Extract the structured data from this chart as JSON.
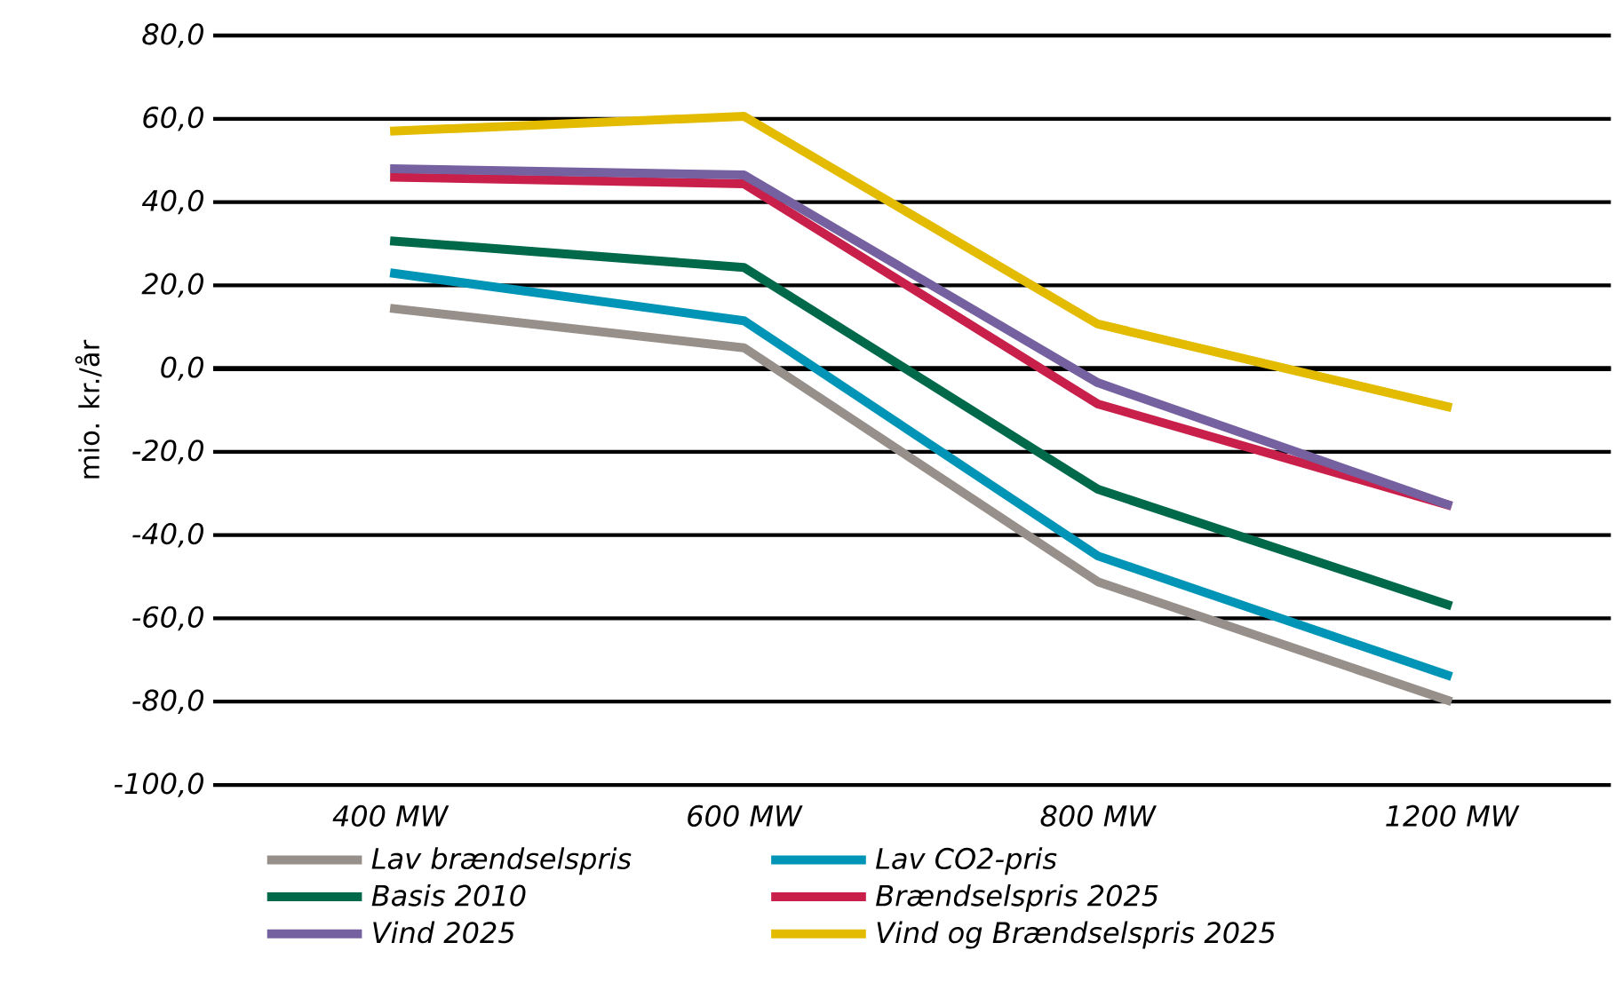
{
  "chart_data": {
    "type": "line",
    "ylabel": "mio. kr./år",
    "categories": [
      "400 MW",
      "600 MW",
      "800 MW",
      "1200 MW"
    ],
    "series": [
      {
        "name": "Lav brændselspris",
        "color": "#968f8a",
        "values": [
          14.5,
          5.0,
          -51.2,
          -80.0
        ]
      },
      {
        "name": "Lav CO2-pris",
        "color": "#0095b6",
        "values": [
          23.0,
          11.5,
          -45.0,
          -74.0
        ]
      },
      {
        "name": "Basis 2010",
        "color": "#00694a",
        "values": [
          30.7,
          24.3,
          -29.0,
          -57.0
        ]
      },
      {
        "name": "Brændselspris 2025",
        "color": "#c8204a",
        "values": [
          46.0,
          44.4,
          -8.5,
          -33.0
        ]
      },
      {
        "name": "Vind 2025",
        "color": "#7560a0",
        "values": [
          48.0,
          46.5,
          -3.4,
          -33.0
        ]
      },
      {
        "name": "Vind og Brændselspris 2025",
        "color": "#e3bb00",
        "values": [
          57.0,
          60.6,
          10.7,
          -9.4
        ]
      }
    ],
    "ylim": [
      -100,
      80
    ],
    "yticks": [
      {
        "value": -100,
        "label": "-100,0"
      },
      {
        "value": -80,
        "label": "-80,0"
      },
      {
        "value": -60,
        "label": "-60,0"
      },
      {
        "value": -40,
        "label": "-40,0"
      },
      {
        "value": -20,
        "label": "-20,0"
      },
      {
        "value": 0,
        "label": "0,0"
      },
      {
        "value": 20,
        "label": "20,0"
      },
      {
        "value": 40,
        "label": "40,0"
      },
      {
        "value": 60,
        "label": "60,0"
      },
      {
        "value": 80,
        "label": "80,0"
      }
    ],
    "grid": "y",
    "legend": "bottom",
    "marker": "none",
    "line_style": "solid"
  }
}
